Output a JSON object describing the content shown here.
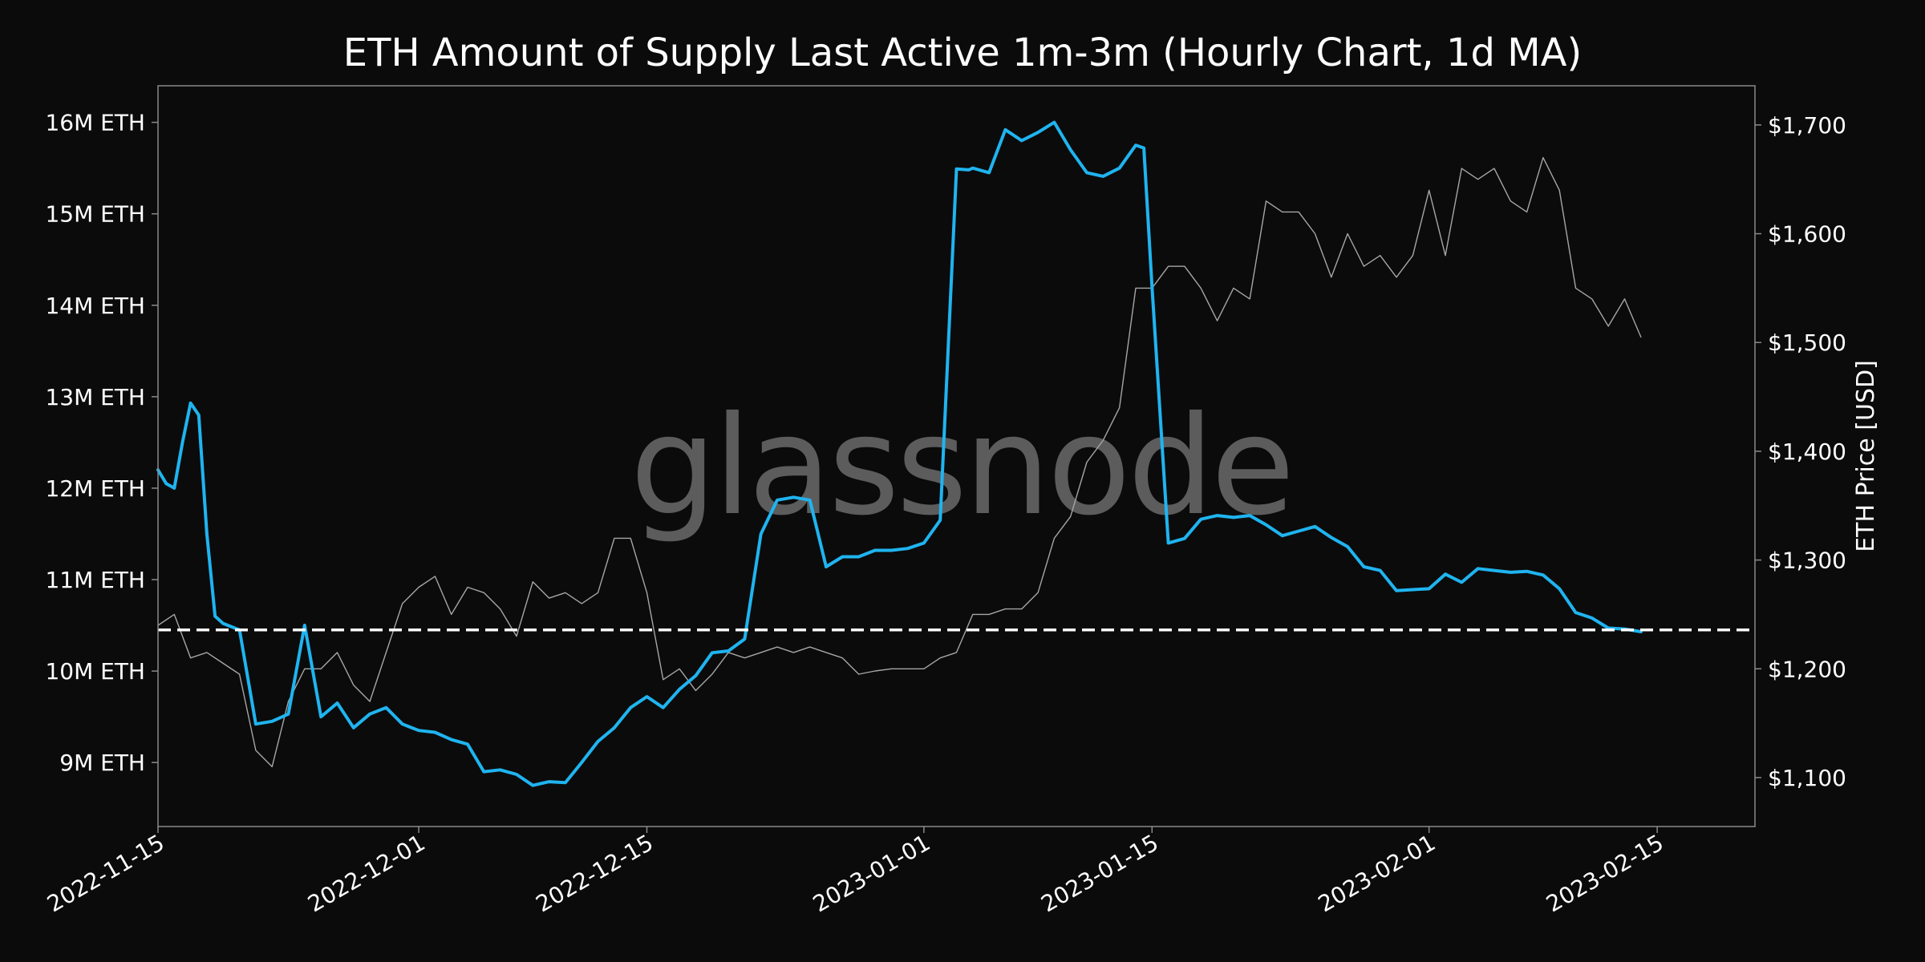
{
  "chart_data": {
    "type": "line",
    "title": "ETH Amount of Supply Last Active 1m-3m (Hourly Chart, 1d MA)",
    "xlabel": "",
    "ylabel": "",
    "y2label": "ETH Price [USD]",
    "watermark": "glassnode",
    "xlim": [
      "2022-11-15",
      "2023-02-21"
    ],
    "ylim": [
      8300000,
      16400000
    ],
    "y2lim": [
      1055,
      1736
    ],
    "x_ticks": [
      "2022-11-15",
      "2022-12-01",
      "2022-12-15",
      "2023-01-01",
      "2023-01-15",
      "2023-02-01",
      "2023-02-15"
    ],
    "y_ticks": [
      {
        "value": 9000000,
        "label": "9M ETH"
      },
      {
        "value": 10000000,
        "label": "10M ETH"
      },
      {
        "value": 11000000,
        "label": "11M ETH"
      },
      {
        "value": 12000000,
        "label": "12M ETH"
      },
      {
        "value": 13000000,
        "label": "13M ETH"
      },
      {
        "value": 14000000,
        "label": "14M ETH"
      },
      {
        "value": 15000000,
        "label": "15M ETH"
      },
      {
        "value": 16000000,
        "label": "16M ETH"
      }
    ],
    "y2_ticks": [
      {
        "value": 1100,
        "label": "$1,100"
      },
      {
        "value": 1200,
        "label": "$1,200"
      },
      {
        "value": 1300,
        "label": "$1,300"
      },
      {
        "value": 1400,
        "label": "$1,400"
      },
      {
        "value": 1500,
        "label": "$1,500"
      },
      {
        "value": 1600,
        "label": "$1,600"
      },
      {
        "value": 1700,
        "label": "$1,700"
      }
    ],
    "reference_line": {
      "value": 10450000,
      "style": "dashed",
      "color": "#ffffff"
    },
    "series": [
      {
        "axis": "left",
        "color": "#1fb4f0",
        "x": [
          "2022-11-15",
          "2022-11-15 12:00",
          "2022-11-16",
          "2022-11-16 12:00",
          "2022-11-17",
          "2022-11-17 12:00",
          "2022-11-18",
          "2022-11-18 12:00",
          "2022-11-19",
          "2022-11-20",
          "2022-11-21",
          "2022-11-22",
          "2022-11-23",
          "2022-11-24",
          "2022-11-25",
          "2022-11-26",
          "2022-11-27",
          "2022-11-28",
          "2022-11-29",
          "2022-11-30",
          "2022-12-01",
          "2022-12-02",
          "2022-12-03",
          "2022-12-04",
          "2022-12-05",
          "2022-12-06",
          "2022-12-07",
          "2022-12-08",
          "2022-12-09",
          "2022-12-10",
          "2022-12-11",
          "2022-12-12",
          "2022-12-13",
          "2022-12-14",
          "2022-12-15",
          "2022-12-16",
          "2022-12-17",
          "2022-12-18",
          "2022-12-19",
          "2022-12-20",
          "2022-12-21",
          "2022-12-22",
          "2022-12-23",
          "2022-12-24",
          "2022-12-25",
          "2022-12-26",
          "2022-12-27",
          "2022-12-28",
          "2022-12-29",
          "2022-12-30",
          "2022-12-31",
          "2023-01-01",
          "2023-01-02",
          "2023-01-03",
          "2023-01-03 18:00",
          "2023-01-04",
          "2023-01-05",
          "2023-01-06",
          "2023-01-07",
          "2023-01-08",
          "2023-01-09",
          "2023-01-10",
          "2023-01-11",
          "2023-01-12",
          "2023-01-13",
          "2023-01-14",
          "2023-01-14 12:00",
          "2023-01-15",
          "2023-01-16",
          "2023-01-17",
          "2023-01-18",
          "2023-01-19",
          "2023-01-20",
          "2023-01-21",
          "2023-01-22",
          "2023-01-23",
          "2023-01-24",
          "2023-01-25",
          "2023-01-26",
          "2023-01-27",
          "2023-01-28",
          "2023-01-29",
          "2023-01-30",
          "2023-01-31",
          "2023-02-01",
          "2023-02-02",
          "2023-02-03",
          "2023-02-04",
          "2023-02-05",
          "2023-02-06",
          "2023-02-07",
          "2023-02-08",
          "2023-02-09",
          "2023-02-10",
          "2023-02-11",
          "2023-02-12",
          "2023-02-13",
          "2023-02-14"
        ],
        "values": [
          12200000,
          12050000,
          12000000,
          12500000,
          12930000,
          12800000,
          11500000,
          10600000,
          10520000,
          10450000,
          9420000,
          9450000,
          9530000,
          10500000,
          9500000,
          9650000,
          9380000,
          9530000,
          9600000,
          9420000,
          9350000,
          9330000,
          9250000,
          9200000,
          8900000,
          8920000,
          8870000,
          8750000,
          8790000,
          8780000,
          9000000,
          9230000,
          9380000,
          9600000,
          9720000,
          9600000,
          9800000,
          9950000,
          10200000,
          10220000,
          10350000,
          11500000,
          11870000,
          11900000,
          11870000,
          11140000,
          11250000,
          11250000,
          11320000,
          11320000,
          11340000,
          11400000,
          11650000,
          15490000,
          15480000,
          15500000,
          15450000,
          15920000,
          15800000,
          15890000,
          16000000,
          15700000,
          15450000,
          15410000,
          15500000,
          15750000,
          15720000,
          14200000,
          11400000,
          11450000,
          11660000,
          11700000,
          11680000,
          11700000,
          11600000,
          11480000,
          11530000,
          11580000,
          11460000,
          11360000,
          11140000,
          11100000,
          10880000,
          10890000,
          10900000,
          11060000,
          10970000,
          11120000,
          11100000,
          11080000,
          11090000,
          11050000,
          10900000,
          10640000,
          10580000,
          10470000,
          10460000,
          10430000
        ]
      },
      {
        "axis": "right",
        "color": "#a6a6a6",
        "name": "",
        "x": [
          "2022-11-15",
          "2022-11-16",
          "2022-11-17",
          "2022-11-18",
          "2022-11-19",
          "2022-11-20",
          "2022-11-21",
          "2022-11-22",
          "2022-11-23",
          "2022-11-24",
          "2022-11-25",
          "2022-11-26",
          "2022-11-27",
          "2022-11-28",
          "2022-11-29",
          "2022-11-30",
          "2022-12-01",
          "2022-12-02",
          "2022-12-03",
          "2022-12-04",
          "2022-12-05",
          "2022-12-06",
          "2022-12-07",
          "2022-12-08",
          "2022-12-09",
          "2022-12-10",
          "2022-12-11",
          "2022-12-12",
          "2022-12-13",
          "2022-12-14",
          "2022-12-15",
          "2022-12-16",
          "2022-12-17",
          "2022-12-18",
          "2022-12-19",
          "2022-12-20",
          "2022-12-21",
          "2022-12-22",
          "2022-12-23",
          "2022-12-24",
          "2022-12-25",
          "2022-12-26",
          "2022-12-27",
          "2022-12-28",
          "2022-12-29",
          "2022-12-30",
          "2022-12-31",
          "2023-01-01",
          "2023-01-02",
          "2023-01-03",
          "2023-01-04",
          "2023-01-05",
          "2023-01-06",
          "2023-01-07",
          "2023-01-08",
          "2023-01-09",
          "2023-01-10",
          "2023-01-11",
          "2023-01-12",
          "2023-01-13",
          "2023-01-14",
          "2023-01-15",
          "2023-01-16",
          "2023-01-17",
          "2023-01-18",
          "2023-01-19",
          "2023-01-20",
          "2023-01-21",
          "2023-01-22",
          "2023-01-23",
          "2023-01-24",
          "2023-01-25",
          "2023-01-26",
          "2023-01-27",
          "2023-01-28",
          "2023-01-29",
          "2023-01-30",
          "2023-01-31",
          "2023-02-01",
          "2023-02-02",
          "2023-02-03",
          "2023-02-04",
          "2023-02-05",
          "2023-02-06",
          "2023-02-07",
          "2023-02-08",
          "2023-02-09",
          "2023-02-10",
          "2023-02-11",
          "2023-02-12",
          "2023-02-13",
          "2023-02-14"
        ],
        "values": [
          1240,
          1250,
          1210,
          1215,
          1205,
          1195,
          1125,
          1110,
          1170,
          1200,
          1200,
          1215,
          1185,
          1170,
          1215,
          1260,
          1275,
          1285,
          1250,
          1275,
          1270,
          1255,
          1230,
          1280,
          1265,
          1270,
          1260,
          1270,
          1320,
          1320,
          1270,
          1190,
          1200,
          1180,
          1195,
          1215,
          1210,
          1215,
          1220,
          1215,
          1220,
          1215,
          1210,
          1195,
          1198,
          1200,
          1200,
          1200,
          1210,
          1215,
          1250,
          1250,
          1255,
          1255,
          1270,
          1320,
          1340,
          1390,
          1410,
          1440,
          1550,
          1550,
          1570,
          1570,
          1550,
          1520,
          1550,
          1540,
          1630,
          1620,
          1620,
          1600,
          1560,
          1600,
          1570,
          1580,
          1560,
          1580,
          1640,
          1580,
          1660,
          1650,
          1660,
          1630,
          1620,
          1670,
          1640,
          1550,
          1540,
          1515,
          1540,
          1505
        ]
      }
    ]
  }
}
